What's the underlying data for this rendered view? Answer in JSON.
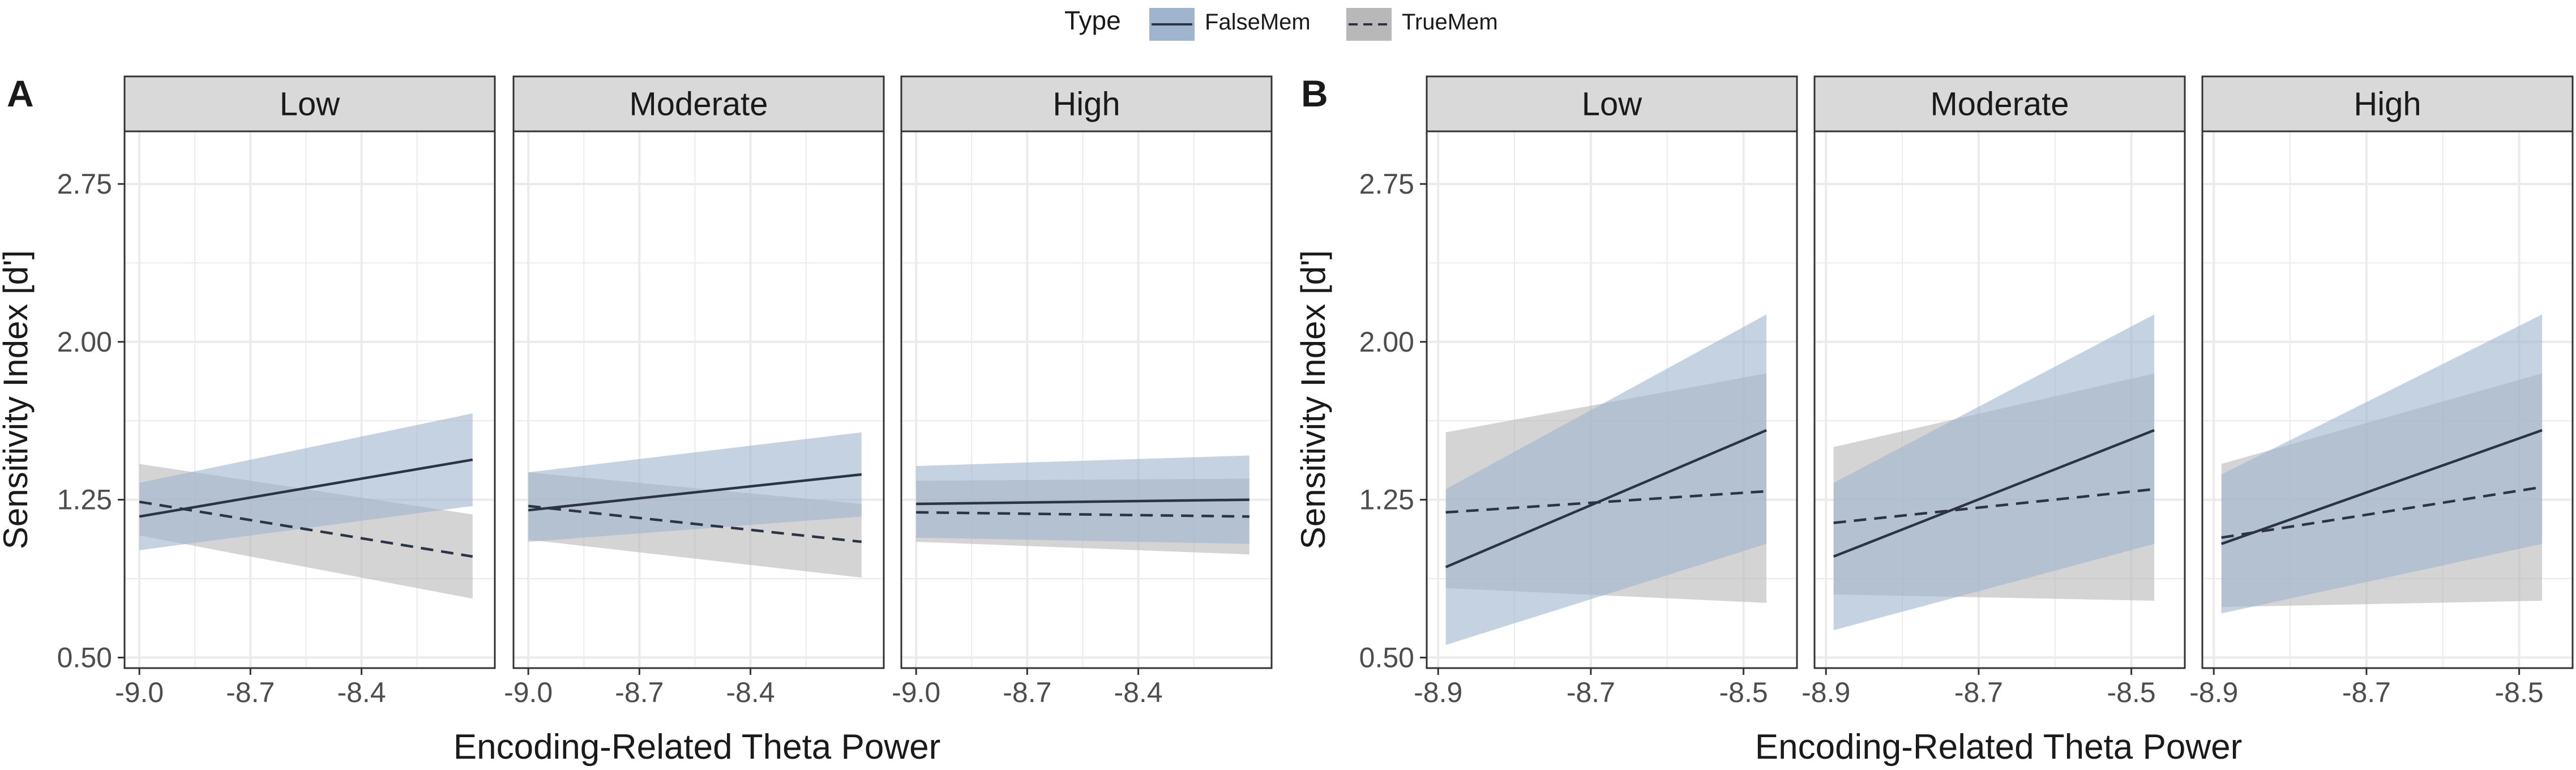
{
  "legend": {
    "title": "Type",
    "items": [
      {
        "label": "FalseMem",
        "style": "solid"
      },
      {
        "label": "TrueMem",
        "style": "dashed"
      }
    ]
  },
  "colors": {
    "falsemem_ribbon": "#9fb4ce",
    "truemem_ribbon": "#b8b8b8",
    "line": "#2a3444",
    "strip_fill": "#d9d9d9",
    "grid": "#ebebeb",
    "border": "#333333",
    "text": "#1a1a1a",
    "tick_text": "#4d4d4d"
  },
  "chart_data": [
    {
      "panel_label": "A",
      "type": "line",
      "ylabel": "Sensitivity Index [d']",
      "xlabel": "Encoding-Related Theta Power",
      "ylim": [
        0.45,
        3.0
      ],
      "yticks": [
        0.5,
        1.25,
        2.0,
        2.75
      ],
      "ytick_labels": [
        "0.50",
        "1.25",
        "2.00",
        "2.75"
      ],
      "xlim": [
        -9.04,
        -8.04
      ],
      "xticks": [
        -9.0,
        -8.7,
        -8.4
      ],
      "xtick_labels": [
        "-9.0",
        "-8.7",
        "-8.4"
      ],
      "x_range": [
        -9.0,
        -8.1
      ],
      "facets": [
        {
          "label": "Low",
          "series": [
            {
              "name": "FalseMem",
              "y": [
                1.17,
                1.44
              ],
              "lower": [
                1.01,
                1.22
              ],
              "upper": [
                1.33,
                1.66
              ]
            },
            {
              "name": "TrueMem",
              "y": [
                1.24,
                0.98
              ],
              "lower": [
                1.08,
                0.78
              ],
              "upper": [
                1.42,
                1.18
              ]
            }
          ]
        },
        {
          "label": "Moderate",
          "series": [
            {
              "name": "FalseMem",
              "y": [
                1.2,
                1.37
              ],
              "lower": [
                1.05,
                1.17
              ],
              "upper": [
                1.38,
                1.57
              ]
            },
            {
              "name": "TrueMem",
              "y": [
                1.22,
                1.05
              ],
              "lower": [
                1.06,
                0.88
              ],
              "upper": [
                1.38,
                1.23
              ]
            }
          ]
        },
        {
          "label": "High",
          "series": [
            {
              "name": "FalseMem",
              "y": [
                1.23,
                1.25
              ],
              "lower": [
                1.07,
                1.04
              ],
              "upper": [
                1.41,
                1.46
              ]
            },
            {
              "name": "TrueMem",
              "y": [
                1.19,
                1.17
              ],
              "lower": [
                1.05,
                0.99
              ],
              "upper": [
                1.34,
                1.35
              ]
            }
          ]
        }
      ]
    },
    {
      "panel_label": "B",
      "type": "line",
      "ylabel": "Sensitivity Index [d']",
      "xlabel": "Encoding-Related Theta Power",
      "ylim": [
        0.45,
        3.0
      ],
      "yticks": [
        0.5,
        1.25,
        2.0,
        2.75
      ],
      "ytick_labels": [
        "0.50",
        "1.25",
        "2.00",
        "2.75"
      ],
      "xlim": [
        -8.915,
        -8.43
      ],
      "xticks": [
        -8.9,
        -8.7,
        -8.5
      ],
      "xtick_labels": [
        "-8.9",
        "-8.7",
        "-8.5"
      ],
      "x_range": [
        -8.89,
        -8.47
      ],
      "facets": [
        {
          "label": "Low",
          "series": [
            {
              "name": "FalseMem",
              "y": [
                0.93,
                1.58
              ],
              "lower": [
                0.56,
                1.04
              ],
              "upper": [
                1.3,
                2.13
              ]
            },
            {
              "name": "TrueMem",
              "y": [
                1.19,
                1.29
              ],
              "lower": [
                0.83,
                0.76
              ],
              "upper": [
                1.57,
                1.85
              ]
            }
          ]
        },
        {
          "label": "Moderate",
          "series": [
            {
              "name": "FalseMem",
              "y": [
                0.98,
                1.58
              ],
              "lower": [
                0.63,
                1.04
              ],
              "upper": [
                1.33,
                2.13
              ]
            },
            {
              "name": "TrueMem",
              "y": [
                1.14,
                1.3
              ],
              "lower": [
                0.8,
                0.77
              ],
              "upper": [
                1.5,
                1.85
              ]
            }
          ]
        },
        {
          "label": "High",
          "series": [
            {
              "name": "FalseMem",
              "y": [
                1.04,
                1.58
              ],
              "lower": [
                0.71,
                1.04
              ],
              "upper": [
                1.37,
                2.13
              ]
            },
            {
              "name": "TrueMem",
              "y": [
                1.07,
                1.31
              ],
              "lower": [
                0.74,
                0.77
              ],
              "upper": [
                1.42,
                1.85
              ]
            }
          ]
        }
      ]
    }
  ]
}
